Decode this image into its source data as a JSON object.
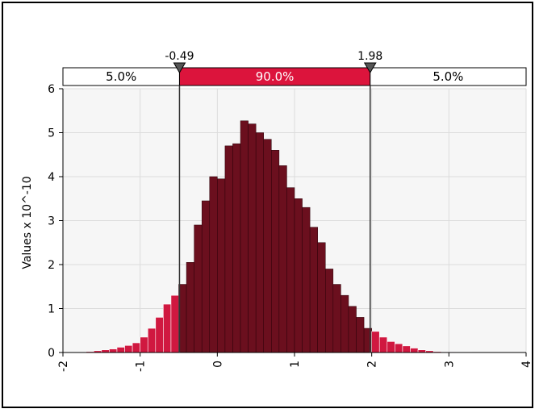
{
  "chart_data": {
    "type": "bar",
    "title": "",
    "xlabel": "",
    "ylabel": "Values x 10^-10",
    "xlim": [
      -2,
      4
    ],
    "ylim": [
      0,
      6
    ],
    "x_ticks": [
      "-2",
      "-1",
      "0",
      "1",
      "2",
      "3",
      "4"
    ],
    "y_ticks": [
      "0",
      "1",
      "2",
      "3",
      "4",
      "5",
      "6"
    ],
    "grid": true,
    "bin_width": 0.1,
    "x": [
      -1.65,
      -1.55,
      -1.45,
      -1.35,
      -1.25,
      -1.15,
      -1.05,
      -0.95,
      -0.85,
      -0.75,
      -0.65,
      -0.55,
      -0.45,
      -0.35,
      -0.25,
      -0.15,
      -0.05,
      0.05,
      0.15,
      0.25,
      0.35,
      0.45,
      0.55,
      0.65,
      0.75,
      0.85,
      0.95,
      1.05,
      1.15,
      1.25,
      1.35,
      1.45,
      1.55,
      1.65,
      1.75,
      1.85,
      1.95,
      2.05,
      2.15,
      2.25,
      2.35,
      2.45,
      2.55,
      2.65,
      2.75,
      2.85,
      2.95,
      3.05,
      3.15,
      3.25,
      3.35
    ],
    "values": [
      0.02,
      0.04,
      0.06,
      0.08,
      0.12,
      0.16,
      0.22,
      0.35,
      0.55,
      0.8,
      1.1,
      1.3,
      1.55,
      2.05,
      2.9,
      3.45,
      4.0,
      3.95,
      4.7,
      4.75,
      5.27,
      5.2,
      5.0,
      4.85,
      4.6,
      4.25,
      3.75,
      3.5,
      3.3,
      2.85,
      2.5,
      1.9,
      1.55,
      1.3,
      1.05,
      0.8,
      0.55,
      0.48,
      0.35,
      0.25,
      0.2,
      0.15,
      0.1,
      0.06,
      0.04,
      0.02,
      0.01,
      0.01,
      0.005,
      0.005,
      0.003
    ],
    "bands": [
      {
        "label": "5.0%",
        "from": -2,
        "to": -0.49
      },
      {
        "label": "90.0%",
        "from": -0.49,
        "to": 1.98
      },
      {
        "label": "5.0%",
        "from": 1.98,
        "to": 4
      }
    ],
    "markers": [
      {
        "label": "-0.49",
        "value": -0.49
      },
      {
        "label": "1.98",
        "value": 1.98
      }
    ],
    "colors": {
      "tail": "#d01840",
      "center": "#6b0f1e",
      "center_band": "#dc143c",
      "marker_line": "#333333"
    }
  }
}
